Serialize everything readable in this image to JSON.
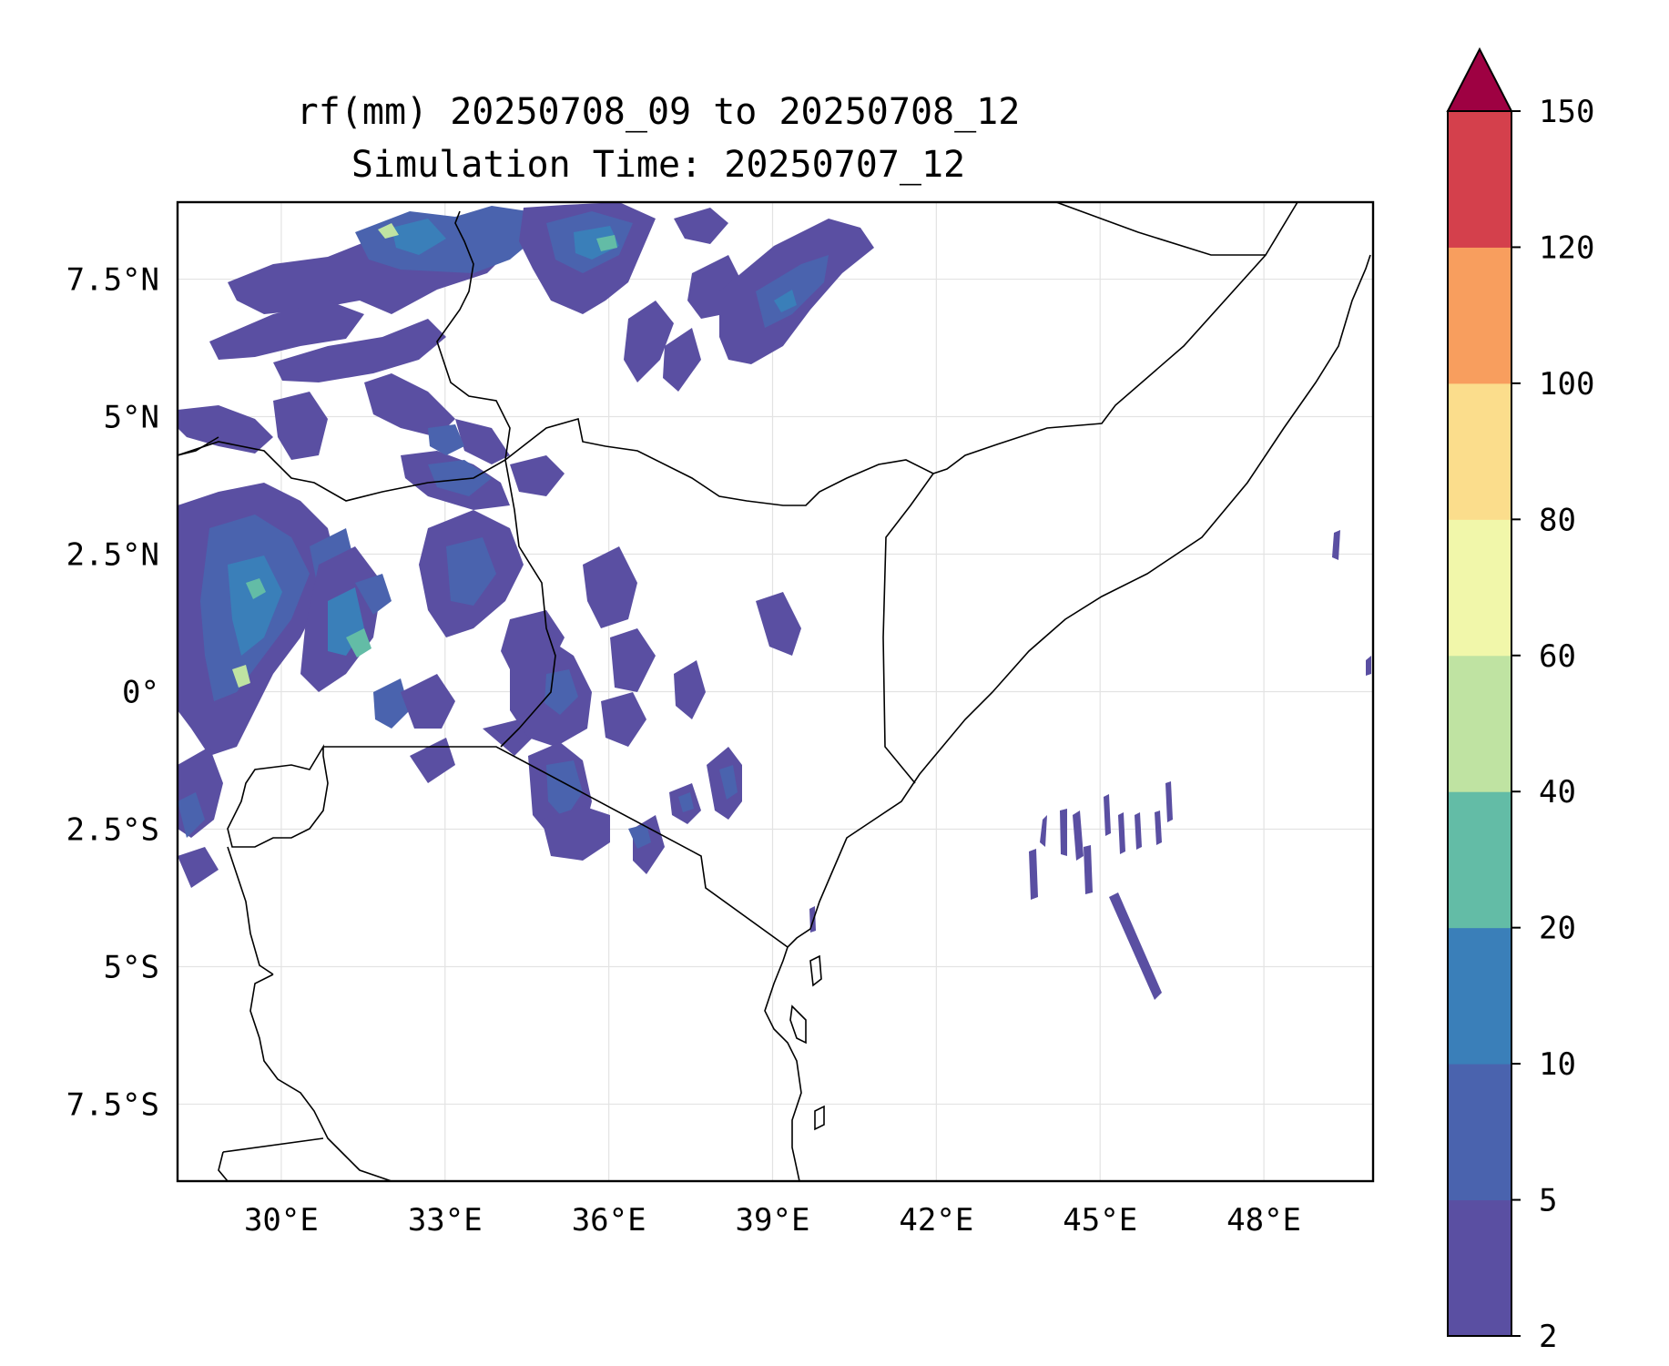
{
  "title": {
    "line1": "rf(mm) 20250708_09 to 20250708_12",
    "line2": "Simulation Time: 20250707_12"
  },
  "map": {
    "extent": {
      "lon_min": 28.1,
      "lon_max": 50.0,
      "lat_min": -8.9,
      "lat_max": 8.9
    },
    "gridlines": true,
    "x_ticks": [
      {
        "lon": 30,
        "label": "30°E"
      },
      {
        "lon": 33,
        "label": "33°E"
      },
      {
        "lon": 36,
        "label": "36°E"
      },
      {
        "lon": 39,
        "label": "39°E"
      },
      {
        "lon": 42,
        "label": "42°E"
      },
      {
        "lon": 45,
        "label": "45°E"
      },
      {
        "lon": 48,
        "label": "48°E"
      }
    ],
    "y_ticks": [
      {
        "lat": 7.5,
        "label": "7.5°N"
      },
      {
        "lat": 5,
        "label": "5°N"
      },
      {
        "lat": 2.5,
        "label": "2.5°N"
      },
      {
        "lat": 0,
        "label": "0°"
      },
      {
        "lat": -2.5,
        "label": "2.5°S"
      },
      {
        "lat": -5,
        "label": "5°S"
      },
      {
        "lat": -7.5,
        "label": "7.5°S"
      }
    ]
  },
  "colorbar": {
    "levels": [
      "2",
      "5",
      "10",
      "20",
      "40",
      "60",
      "80",
      "100",
      "120",
      "150"
    ],
    "colors": [
      "#5a4fa2",
      "#4a63ae",
      "#3a7fb9",
      "#63bca6",
      "#bfe3a2",
      "#f1f7aa",
      "#fbdd8c",
      "#f89e5e",
      "#d4404c"
    ],
    "extend_color": "#9e0142",
    "extend": "max"
  }
}
